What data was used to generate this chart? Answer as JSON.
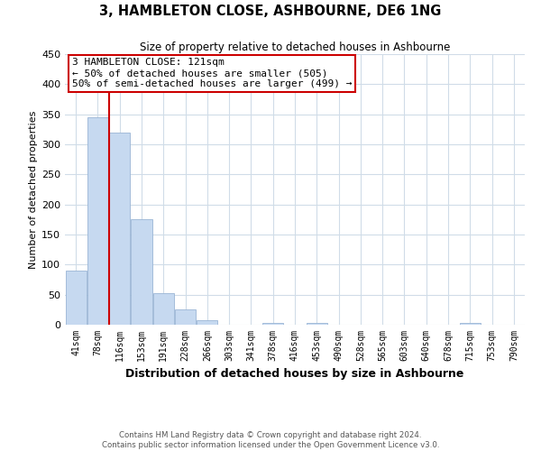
{
  "title": "3, HAMBLETON CLOSE, ASHBOURNE, DE6 1NG",
  "subtitle": "Size of property relative to detached houses in Ashbourne",
  "xlabel": "Distribution of detached houses by size in Ashbourne",
  "ylabel": "Number of detached properties",
  "bar_labels": [
    "41sqm",
    "78sqm",
    "116sqm",
    "153sqm",
    "191sqm",
    "228sqm",
    "266sqm",
    "303sqm",
    "341sqm",
    "378sqm",
    "416sqm",
    "453sqm",
    "490sqm",
    "528sqm",
    "565sqm",
    "603sqm",
    "640sqm",
    "678sqm",
    "715sqm",
    "753sqm",
    "790sqm"
  ],
  "bar_values": [
    90,
    345,
    320,
    175,
    53,
    26,
    8,
    0,
    0,
    3,
    0,
    3,
    0,
    0,
    0,
    0,
    0,
    0,
    3,
    0,
    0
  ],
  "bar_color": "#c6d9f0",
  "bar_edgecolor": "#9ab5d5",
  "vline_color": "#cc0000",
  "vline_x_index": 2,
  "annotation_title": "3 HAMBLETON CLOSE: 121sqm",
  "annotation_line1": "← 50% of detached houses are smaller (505)",
  "annotation_line2": "50% of semi-detached houses are larger (499) →",
  "annotation_box_color": "#cc0000",
  "ylim": [
    0,
    450
  ],
  "yticks": [
    0,
    50,
    100,
    150,
    200,
    250,
    300,
    350,
    400,
    450
  ],
  "footer_line1": "Contains HM Land Registry data © Crown copyright and database right 2024.",
  "footer_line2": "Contains public sector information licensed under the Open Government Licence v3.0.",
  "bg_color": "#ffffff",
  "grid_color": "#d0dce8"
}
